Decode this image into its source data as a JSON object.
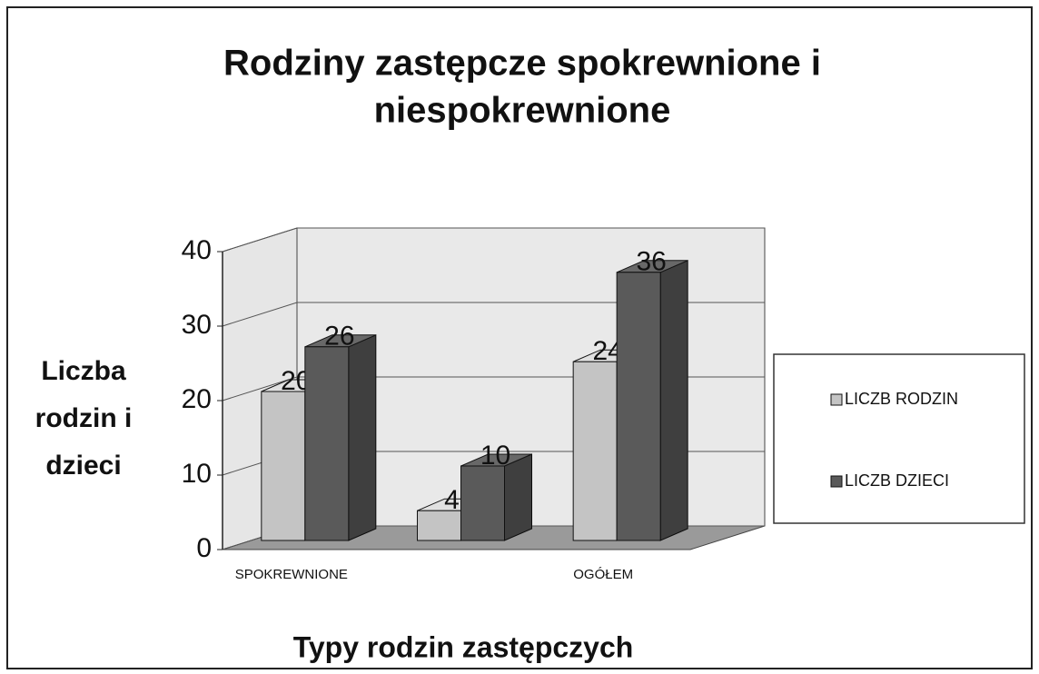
{
  "chart_data": {
    "type": "bar3d",
    "title": [
      "Rodziny zastępcze spokrewnione i",
      "niespokrewnione"
    ],
    "y_label": [
      "Liczba",
      "rodzin i",
      "dzieci"
    ],
    "x_label": "Typy rodzin zastępczych",
    "categories": [
      "SPOKREWNIONE",
      null,
      "OGÓŁEM"
    ],
    "series": [
      {
        "name": "LICZB RODZIN",
        "color": "#c4c4c4",
        "values": [
          20,
          4,
          24
        ]
      },
      {
        "name": "LICZB DZIECI",
        "color": "#5a5a5a",
        "values": [
          26,
          10,
          36
        ]
      }
    ],
    "ylim": [
      0,
      40
    ],
    "yticks": [
      0,
      10,
      20,
      30,
      40
    ],
    "grid": true,
    "legend": "right"
  }
}
